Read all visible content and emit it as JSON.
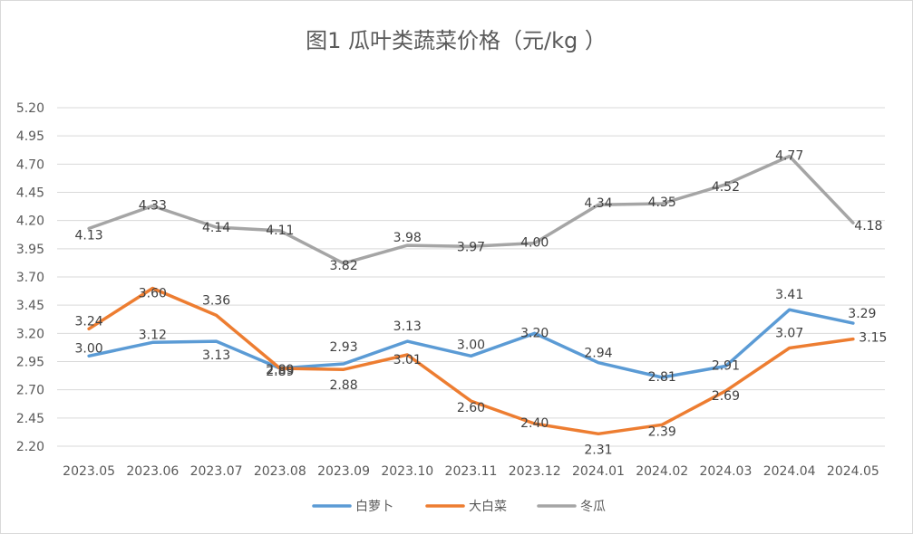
{
  "chart_data": {
    "type": "line",
    "title": "图1  瓜叶类蔬菜价格（元/kg ）",
    "xlabel": "",
    "ylabel": "",
    "categories": [
      "2023.05",
      "2023.06",
      "2023.07",
      "2023.08",
      "2023.09",
      "2023.10",
      "2023.11",
      "2023.12",
      "2024.01",
      "2024.02",
      "2024.03",
      "2024.04",
      "2024.05"
    ],
    "y_ticks": [
      "2.20",
      "2.45",
      "2.70",
      "2.95",
      "3.20",
      "3.45",
      "3.70",
      "3.95",
      "4.20",
      "4.45",
      "4.70",
      "4.95",
      "5.20"
    ],
    "ylim": [
      2.2,
      5.2
    ],
    "grid": true,
    "legend_position": "bottom",
    "series": [
      {
        "name": "白萝卜",
        "color": "#5b9bd5",
        "values": [
          3.0,
          3.12,
          3.13,
          2.89,
          2.93,
          3.13,
          3.0,
          3.2,
          2.94,
          2.81,
          2.91,
          3.41,
          3.29
        ],
        "labels": [
          "3.00",
          "3.12",
          "3.13",
          "2.89",
          "2.93",
          "3.13",
          "3.00",
          "3.20",
          "2.94",
          "2.81",
          "2.91",
          "3.41",
          "3.29"
        ]
      },
      {
        "name": "大白菜",
        "color": "#ed7d31",
        "values": [
          3.24,
          3.6,
          3.36,
          2.89,
          2.88,
          3.01,
          2.6,
          2.4,
          2.31,
          2.39,
          2.69,
          3.07,
          3.15
        ],
        "labels": [
          "3.24",
          "3.60",
          "3.36",
          "2.89",
          "2.88",
          "3.01",
          "2.60",
          "2.40",
          "2.31",
          "2.39",
          "2.69",
          "3.07",
          "3.15"
        ]
      },
      {
        "name": "冬瓜",
        "color": "#a5a5a5",
        "values": [
          4.13,
          4.33,
          4.14,
          4.11,
          3.82,
          3.98,
          3.97,
          4.0,
          4.34,
          4.35,
          4.52,
          4.77,
          4.18
        ],
        "labels": [
          "4.13",
          "4.33",
          "4.14",
          "4.11",
          "3.82",
          "3.98",
          "3.97",
          "4.00",
          "4.34",
          "4.35",
          "4.52",
          "4.77",
          "4.18"
        ]
      }
    ]
  }
}
